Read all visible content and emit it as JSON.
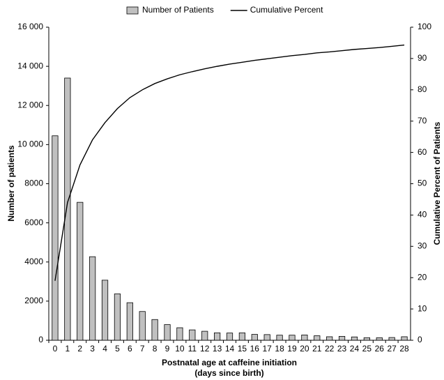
{
  "chart_data": {
    "type": "bar-line",
    "categories": [
      "0",
      "1",
      "2",
      "3",
      "4",
      "5",
      "6",
      "7",
      "8",
      "9",
      "10",
      "11",
      "12",
      "13",
      "14",
      "15",
      "16",
      "17",
      "18",
      "19",
      "20",
      "21",
      "22",
      "23",
      "24",
      "25",
      "26",
      "27",
      "28"
    ],
    "series": [
      {
        "name": "Number of Patients",
        "type": "bar",
        "color": "#c0c0c0",
        "values": [
          10450,
          13400,
          7050,
          4270,
          3070,
          2370,
          1920,
          1470,
          1060,
          800,
          640,
          530,
          460,
          380,
          370,
          380,
          300,
          290,
          260,
          260,
          270,
          230,
          180,
          200,
          170,
          130,
          130,
          140,
          180
        ]
      },
      {
        "name": "Cumulative Percent",
        "type": "line",
        "axis": "y2",
        "color": "#000000",
        "values": [
          19,
          44,
          56,
          64,
          69.5,
          74,
          77.5,
          80,
          82,
          83.5,
          84.8,
          85.8,
          86.7,
          87.5,
          88.2,
          88.8,
          89.4,
          89.9,
          90.4,
          90.9,
          91.3,
          91.8,
          92.1,
          92.5,
          92.9,
          93.2,
          93.5,
          93.9,
          94.3
        ]
      }
    ],
    "ylim": [
      0,
      16000
    ],
    "yticks": [
      0,
      2000,
      4000,
      6000,
      8000,
      {
        "value": 10000,
        "label": "10 000"
      },
      {
        "value": 12000,
        "label": "12 000"
      },
      {
        "value": 14000,
        "label": "14 000"
      },
      {
        "value": 16000,
        "label": "16 000"
      }
    ],
    "y2lim": [
      0,
      100
    ],
    "y2ticks": [
      0,
      10,
      20,
      30,
      40,
      50,
      60,
      70,
      80,
      90,
      100
    ],
    "y_label": "Number of patients",
    "y2_label": "Cumulative Percent of Patients",
    "x_label": [
      "Postnatal age at caffeine initiation",
      "(days since birth)"
    ],
    "legend": "top"
  }
}
